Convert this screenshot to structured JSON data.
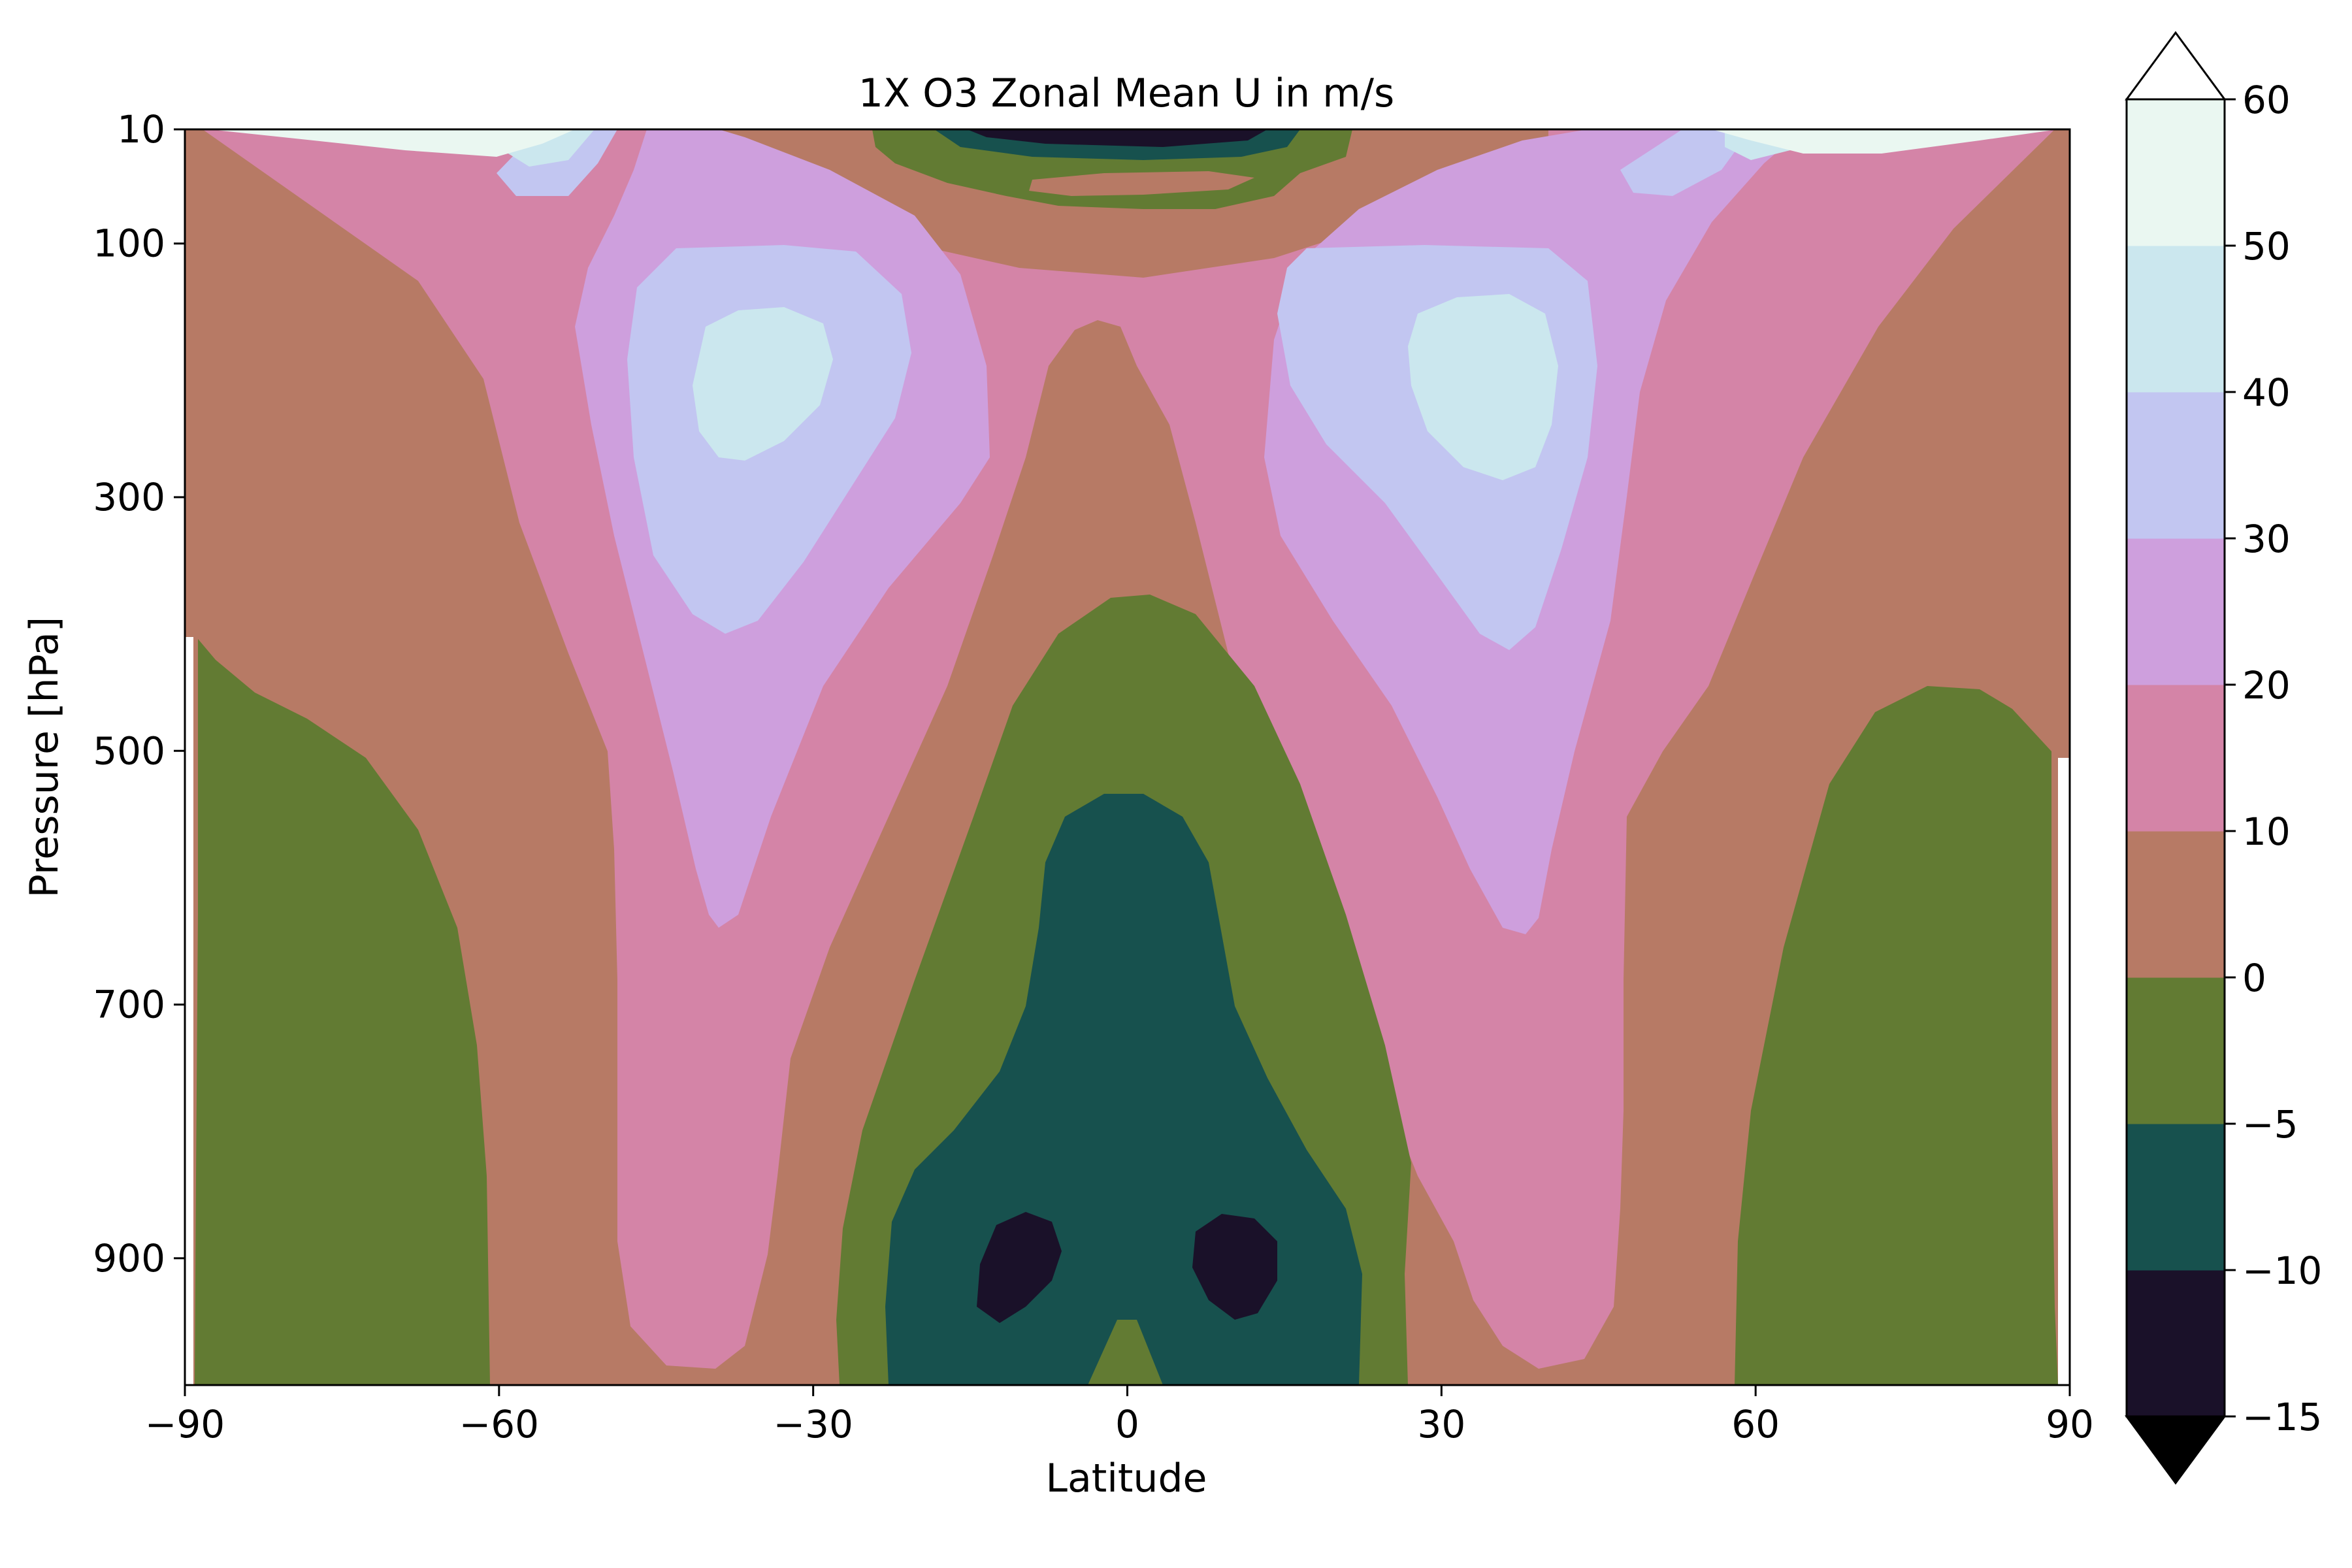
{
  "chart_data": {
    "type": "contourf",
    "title": "1X O3 Zonal Mean U in m/s",
    "xlabel": "Latitude",
    "ylabel": "Pressure [hPa]",
    "xlim": [
      -90,
      90
    ],
    "ylim": [
      1000,
      10
    ],
    "y_inverted": true,
    "grid": false,
    "x_ticks": [
      -90,
      -60,
      -30,
      0,
      30,
      60,
      90
    ],
    "x_tick_labels": [
      "−90",
      "−60",
      "−30",
      "0",
      "30",
      "60",
      "90"
    ],
    "y_ticks": [
      10,
      100,
      300,
      500,
      700,
      900
    ],
    "y_tick_labels": [
      "10",
      "100",
      "300",
      "500",
      "700",
      "900"
    ],
    "colorbar": {
      "position": "right",
      "extend": "both",
      "levels": [
        -15,
        -10,
        -5,
        0,
        10,
        20,
        30,
        40,
        50,
        60
      ],
      "tick_labels": [
        "−15",
        "−10",
        "−5",
        "0",
        "10",
        "20",
        "30",
        "40",
        "50",
        "60"
      ],
      "colors": [
        "#1A1129",
        "#17514E",
        "#627B33",
        "#B77A65",
        "#D484A7",
        "#CE9FDD",
        "#C2C6F1",
        "#CBE7EE",
        "#EAF7F1"
      ],
      "under_color": "#000000",
      "over_color": "#FFFFFF"
    },
    "features": [
      {
        "name": "southern subtropical jet core",
        "lat": -35,
        "pressure_hPa": 200,
        "value_band": [
          40,
          50
        ]
      },
      {
        "name": "northern subtropical jet core",
        "lat": 35,
        "pressure_hPa": 230,
        "value_band": [
          40,
          50
        ]
      },
      {
        "name": "equatorial surface easterly minimum (south)",
        "lat": -10,
        "pressure_hPa": 910,
        "value_band": [
          -15,
          -10
        ]
      },
      {
        "name": "equatorial surface easterly minimum (north)",
        "lat": 10,
        "pressure_hPa": 910,
        "value_band": [
          -15,
          -10
        ]
      },
      {
        "name": "equatorial stratospheric easterlies",
        "lat": 0,
        "pressure_hPa": 10,
        "value_band": [
          -15,
          -10
        ]
      },
      {
        "name": "southern polar surface easterlies",
        "lat": -78,
        "pressure_hPa": 700,
        "value_band": [
          -5,
          0
        ]
      },
      {
        "name": "northern polar surface easterlies",
        "lat": 77,
        "pressure_hPa": 650,
        "value_band": [
          -5,
          0
        ]
      }
    ]
  }
}
